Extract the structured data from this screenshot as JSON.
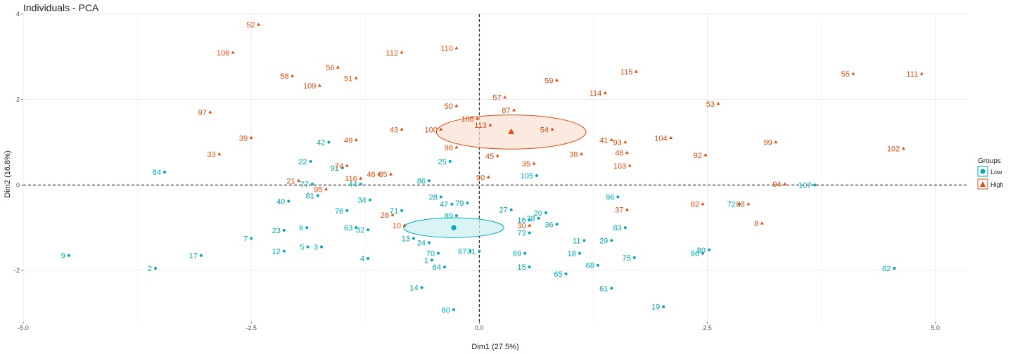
{
  "chart_data": {
    "type": "scatter",
    "title": "Individuals - PCA",
    "xlabel": "Dim1 (27.5%)",
    "ylabel": "Dim2 (16.8%)",
    "xlim": [
      -5.0,
      5.35
    ],
    "ylim": [
      -3.2,
      4.0
    ],
    "xticks": [
      -5.0,
      -2.5,
      0.0,
      2.5,
      5.0
    ],
    "xtick_labels": [
      "-5.0",
      "-2.5",
      "0.0",
      "2.5",
      "5.0"
    ],
    "yticks": [
      -2,
      0,
      2,
      4
    ],
    "ytick_labels": [
      "-2",
      "0",
      "2",
      "4"
    ],
    "grid": true,
    "legend": {
      "title": "Groups",
      "placement": "right",
      "items": [
        {
          "label": "Low",
          "color": "#00A9B5",
          "shape": "circle"
        },
        {
          "label": "High",
          "color": "#E64A0E",
          "shape": "triangle"
        }
      ]
    },
    "centroids": [
      {
        "group": "Low",
        "x": -0.28,
        "y": -1.0,
        "ellipse_rx": 0.55,
        "ellipse_ry": 0.23,
        "fill": "#cdeff1",
        "stroke": "#00A9B5"
      },
      {
        "group": "High",
        "x": 0.35,
        "y": 1.24,
        "ellipse_rx": 0.82,
        "ellipse_ry": 0.4,
        "fill": "#fbe2d6",
        "stroke": "#E64A0E"
      }
    ],
    "series": [
      {
        "name": "Low",
        "color": "#00A9B5",
        "marker": "circle",
        "points": [
          {
            "label": "1",
            "x": -0.52,
            "y": -1.76
          },
          {
            "label": "2",
            "x": -3.55,
            "y": -1.95
          },
          {
            "label": "3",
            "x": -1.73,
            "y": -1.45
          },
          {
            "label": "4",
            "x": -1.22,
            "y": -1.72
          },
          {
            "label": "5",
            "x": -1.88,
            "y": -1.45
          },
          {
            "label": "6",
            "x": -1.89,
            "y": -1.0
          },
          {
            "label": "7",
            "x": -2.5,
            "y": -1.25
          },
          {
            "label": "9",
            "x": -4.5,
            "y": -1.65
          },
          {
            "label": "11",
            "x": 1.15,
            "y": -1.3
          },
          {
            "label": "12",
            "x": -2.14,
            "y": -1.55
          },
          {
            "label": "13",
            "x": -0.72,
            "y": -1.25
          },
          {
            "label": "14",
            "x": -0.63,
            "y": -2.4
          },
          {
            "label": "15",
            "x": 0.55,
            "y": -1.92
          },
          {
            "label": "16",
            "x": 0.55,
            "y": -0.82
          },
          {
            "label": "17",
            "x": -3.05,
            "y": -1.65
          },
          {
            "label": "18",
            "x": 1.1,
            "y": -1.6
          },
          {
            "label": "19",
            "x": 2.02,
            "y": -2.85
          },
          {
            "label": "20",
            "x": 0.73,
            "y": -0.65
          },
          {
            "label": "22",
            "x": -1.85,
            "y": 0.55
          },
          {
            "label": "23",
            "x": -2.14,
            "y": -1.06
          },
          {
            "label": "24",
            "x": -0.55,
            "y": -1.35
          },
          {
            "label": "25",
            "x": -0.32,
            "y": 0.55
          },
          {
            "label": "27",
            "x": 0.35,
            "y": -0.58
          },
          {
            "label": "28",
            "x": -0.42,
            "y": -0.28
          },
          {
            "label": "29",
            "x": 1.45,
            "y": -1.3
          },
          {
            "label": "31",
            "x": 0.0,
            "y": -1.55
          },
          {
            "label": "32",
            "x": -1.22,
            "y": -1.05
          },
          {
            "label": "34",
            "x": -1.2,
            "y": -0.35
          },
          {
            "label": "36",
            "x": 0.85,
            "y": -0.92
          },
          {
            "label": "40",
            "x": -2.09,
            "y": -0.38
          },
          {
            "label": "42",
            "x": -1.65,
            "y": 1.0
          },
          {
            "label": "44",
            "x": -1.3,
            "y": 0.02
          },
          {
            "label": "47",
            "x": -0.3,
            "y": -0.45
          },
          {
            "label": "60",
            "x": -0.28,
            "y": -2.92
          },
          {
            "label": "61",
            "x": 1.45,
            "y": -2.42
          },
          {
            "label": "62",
            "x": 4.55,
            "y": -1.95
          },
          {
            "label": "63",
            "x": -1.35,
            "y": -1.0
          },
          {
            "label": "64",
            "x": -0.38,
            "y": -1.92
          },
          {
            "label": "65",
            "x": 0.95,
            "y": -2.08
          },
          {
            "label": "66",
            "x": 2.45,
            "y": -1.6
          },
          {
            "label": "67",
            "x": -0.1,
            "y": -1.55
          },
          {
            "label": "68",
            "x": 1.3,
            "y": -1.88
          },
          {
            "label": "69",
            "x": 0.5,
            "y": -1.6
          },
          {
            "label": "70",
            "x": -0.45,
            "y": -1.6
          },
          {
            "label": "71",
            "x": -0.85,
            "y": -0.6
          },
          {
            "label": "72",
            "x": 2.85,
            "y": -0.45
          },
          {
            "label": "73",
            "x": 0.55,
            "y": -1.12
          },
          {
            "label": "75",
            "x": 1.7,
            "y": -1.7
          },
          {
            "label": "76",
            "x": -1.45,
            "y": -0.6
          },
          {
            "label": "77",
            "x": -1.83,
            "y": 0.02
          },
          {
            "label": "78",
            "x": 0.65,
            "y": -0.78
          },
          {
            "label": "79",
            "x": -0.13,
            "y": -0.42
          },
          {
            "label": "80",
            "x": 2.52,
            "y": -1.52
          },
          {
            "label": "81",
            "x": -1.77,
            "y": -0.25
          },
          {
            "label": "83",
            "x": 1.6,
            "y": -1.0
          },
          {
            "label": "84",
            "x": -3.45,
            "y": 0.3
          },
          {
            "label": "86",
            "x": -0.55,
            "y": 0.1
          },
          {
            "label": "89",
            "x": -0.25,
            "y": -0.72
          },
          {
            "label": "91",
            "x": -1.5,
            "y": 0.4
          },
          {
            "label": "96",
            "x": 1.52,
            "y": -0.28
          },
          {
            "label": "105",
            "x": 0.63,
            "y": 0.22
          },
          {
            "label": "107",
            "x": 3.68,
            "y": 0.0
          }
        ]
      },
      {
        "name": "High",
        "color": "#E64A0E",
        "marker": "triangle",
        "points": [
          {
            "label": "8",
            "x": 3.1,
            "y": -0.9
          },
          {
            "label": "10",
            "x": -0.82,
            "y": -0.95
          },
          {
            "label": "21",
            "x": -1.98,
            "y": 0.1
          },
          {
            "label": "26",
            "x": -0.95,
            "y": -0.7
          },
          {
            "label": "30",
            "x": 0.55,
            "y": -0.95
          },
          {
            "label": "33",
            "x": -2.85,
            "y": 0.72
          },
          {
            "label": "35",
            "x": 0.6,
            "y": 0.5
          },
          {
            "label": "37",
            "x": 1.62,
            "y": -0.58
          },
          {
            "label": "38",
            "x": 1.12,
            "y": 0.72
          },
          {
            "label": "39",
            "x": -2.5,
            "y": 1.1
          },
          {
            "label": "41",
            "x": 1.45,
            "y": 1.05
          },
          {
            "label": "43",
            "x": -0.85,
            "y": 1.3
          },
          {
            "label": "45",
            "x": 0.2,
            "y": 0.68
          },
          {
            "label": "46",
            "x": -1.1,
            "y": 0.25
          },
          {
            "label": "48",
            "x": 1.62,
            "y": 0.75
          },
          {
            "label": "49",
            "x": -1.35,
            "y": 1.05
          },
          {
            "label": "50",
            "x": -0.25,
            "y": 1.85
          },
          {
            "label": "51",
            "x": -1.35,
            "y": 2.5
          },
          {
            "label": "52",
            "x": -2.42,
            "y": 3.75
          },
          {
            "label": "53",
            "x": 2.62,
            "y": 1.9
          },
          {
            "label": "54",
            "x": 0.8,
            "y": 1.3
          },
          {
            "label": "55",
            "x": 4.1,
            "y": 2.6
          },
          {
            "label": "56",
            "x": -1.55,
            "y": 2.75
          },
          {
            "label": "57",
            "x": 0.28,
            "y": 2.05
          },
          {
            "label": "58",
            "x": -2.05,
            "y": 2.55
          },
          {
            "label": "59",
            "x": 0.85,
            "y": 2.45
          },
          {
            "label": "74",
            "x": -1.45,
            "y": 0.45
          },
          {
            "label": "82",
            "x": 2.45,
            "y": -0.45
          },
          {
            "label": "85",
            "x": -0.97,
            "y": 0.25
          },
          {
            "label": "87",
            "x": 0.38,
            "y": 1.75
          },
          {
            "label": "88",
            "x": 2.95,
            "y": -0.45
          },
          {
            "label": "90",
            "x": 0.1,
            "y": 0.18
          },
          {
            "label": "92",
            "x": 2.48,
            "y": 0.7
          },
          {
            "label": "93",
            "x": 1.6,
            "y": 1.0
          },
          {
            "label": "94",
            "x": 3.35,
            "y": 0.02
          },
          {
            "label": "95",
            "x": -1.68,
            "y": -0.1
          },
          {
            "label": "97",
            "x": -2.95,
            "y": 1.7
          },
          {
            "label": "98",
            "x": -0.25,
            "y": 0.88
          },
          {
            "label": "99",
            "x": 3.25,
            "y": 1.0
          },
          {
            "label": "100",
            "x": -0.42,
            "y": 1.3
          },
          {
            "label": "102",
            "x": 4.65,
            "y": 0.85
          },
          {
            "label": "103",
            "x": 1.65,
            "y": 0.45
          },
          {
            "label": "104",
            "x": 2.1,
            "y": 1.1
          },
          {
            "label": "106",
            "x": -2.7,
            "y": 3.1
          },
          {
            "label": "108",
            "x": -0.02,
            "y": 1.55
          },
          {
            "label": "109",
            "x": -1.75,
            "y": 2.32
          },
          {
            "label": "110",
            "x": -0.25,
            "y": 3.2
          },
          {
            "label": "111",
            "x": 4.85,
            "y": 2.6
          },
          {
            "label": "112",
            "x": -0.85,
            "y": 3.1
          },
          {
            "label": "113",
            "x": 0.12,
            "y": 1.4
          },
          {
            "label": "114",
            "x": 1.38,
            "y": 2.15
          },
          {
            "label": "115",
            "x": 1.72,
            "y": 2.65
          },
          {
            "label": "116",
            "x": -1.3,
            "y": 0.15
          }
        ]
      }
    ]
  }
}
